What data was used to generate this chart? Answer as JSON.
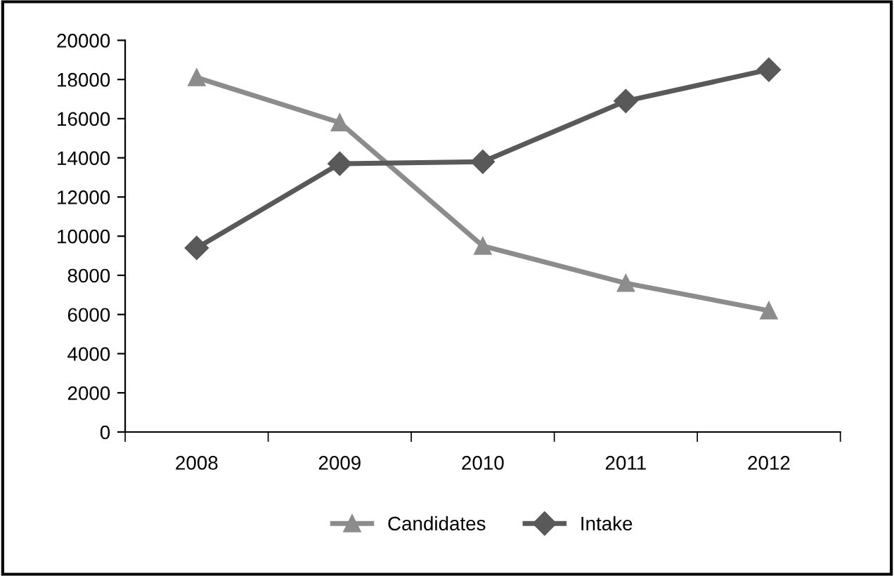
{
  "chart_data": {
    "type": "line",
    "categories": [
      "2008",
      "2009",
      "2010",
      "2011",
      "2012"
    ],
    "series": [
      {
        "name": "Candidates",
        "color": "#8c8c8c",
        "marker": "triangle",
        "values": [
          18100,
          15800,
          9500,
          7600,
          6200
        ]
      },
      {
        "name": "Intake",
        "color": "#595959",
        "marker": "diamond",
        "values": [
          9400,
          13700,
          13800,
          16900,
          18500
        ]
      }
    ],
    "ylim": [
      0,
      20000
    ],
    "yticks": [
      0,
      2000,
      4000,
      6000,
      8000,
      10000,
      12000,
      14000,
      16000,
      18000,
      20000
    ],
    "grid": false,
    "legend": "bottom",
    "line_style": "solid"
  }
}
